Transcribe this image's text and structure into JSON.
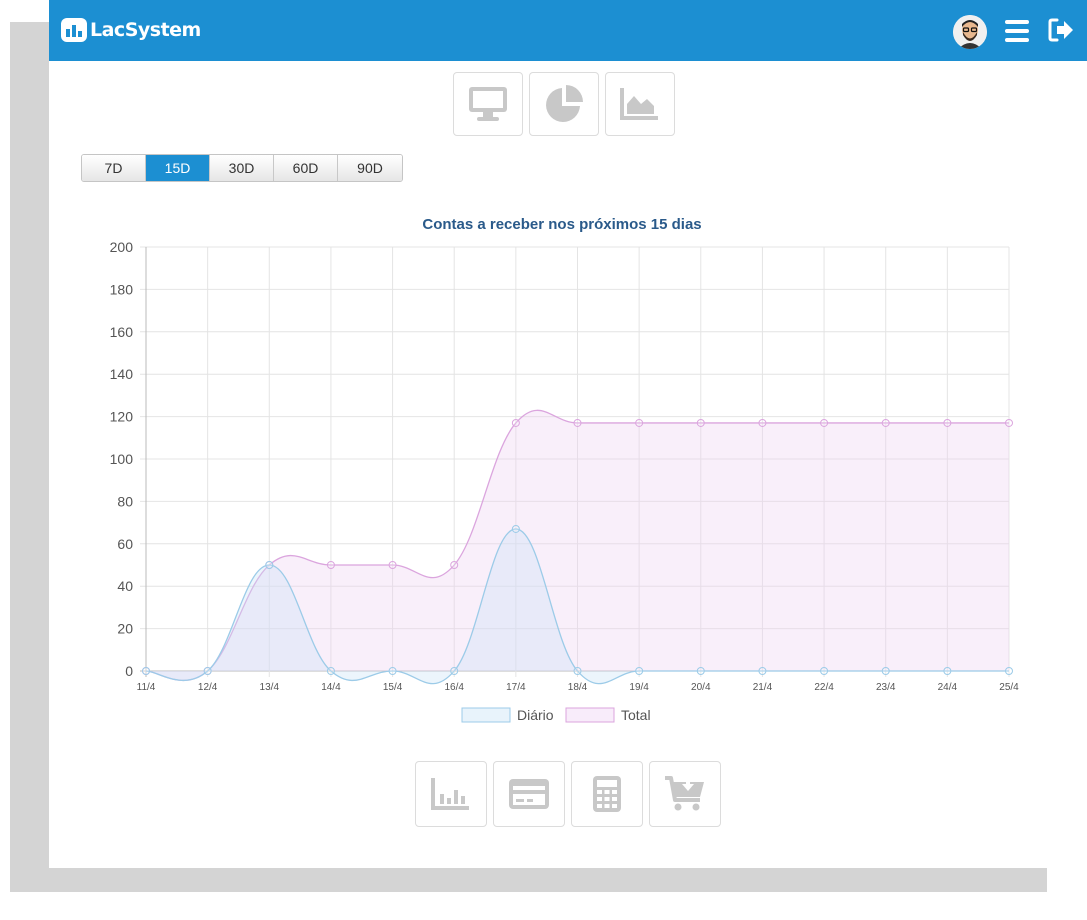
{
  "app": {
    "name": "LacSystem"
  },
  "header": {
    "icons": [
      "avatar",
      "menu-icon",
      "logout-icon"
    ]
  },
  "view_buttons": [
    "desktop-icon",
    "pie-chart-icon",
    "area-chart-icon"
  ],
  "period_buttons": [
    {
      "label": "7D",
      "active": false
    },
    {
      "label": "15D",
      "active": true
    },
    {
      "label": "30D",
      "active": false
    },
    {
      "label": "60D",
      "active": false
    },
    {
      "label": "90D",
      "active": false
    }
  ],
  "bottom_buttons": [
    "bar-chart-icon",
    "credit-card-icon",
    "calculator-icon",
    "cart-icon"
  ],
  "colors": {
    "header": "#1c8fd2",
    "diario_line": "#9ccbe8",
    "diario_fill": "rgba(200,225,245,0.35)",
    "total_line": "#dba5de",
    "total_fill": "rgba(238,210,242,0.35)"
  },
  "chart_data": {
    "type": "area",
    "title": "Contas a receber nos próximos 15 dias",
    "categories": [
      "11/4",
      "12/4",
      "13/4",
      "14/4",
      "15/4",
      "16/4",
      "17/4",
      "18/4",
      "19/4",
      "20/4",
      "21/4",
      "22/4",
      "23/4",
      "24/4",
      "25/4"
    ],
    "series": [
      {
        "name": "Diário",
        "values": [
          0,
          0,
          50,
          0,
          0,
          0,
          67,
          0,
          0,
          0,
          0,
          0,
          0,
          0,
          0
        ]
      },
      {
        "name": "Total",
        "values": [
          0,
          0,
          50,
          50,
          50,
          50,
          117,
          117,
          117,
          117,
          117,
          117,
          117,
          117,
          117
        ]
      }
    ],
    "ylim": [
      0,
      200
    ],
    "yticks": [
      0,
      20,
      40,
      60,
      80,
      100,
      120,
      140,
      160,
      180,
      200
    ],
    "grid": true,
    "legend": "bottom"
  }
}
